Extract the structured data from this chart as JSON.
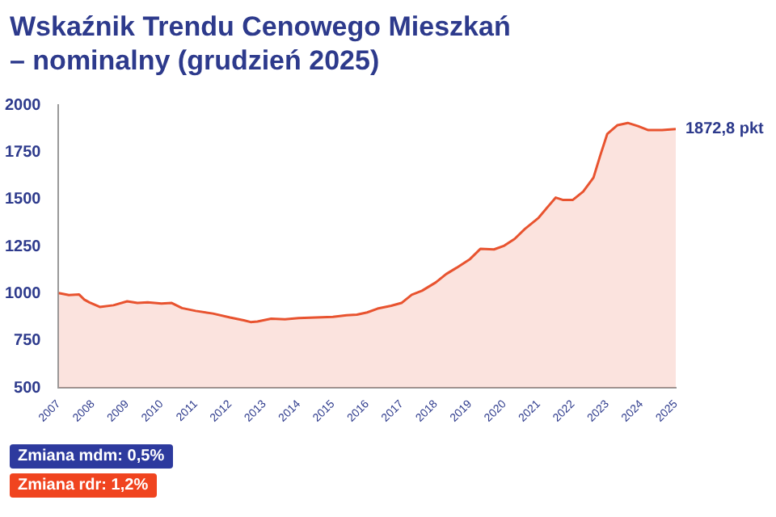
{
  "chart_data": {
    "type": "area",
    "title": "Wskaźnik Trendu Cenowego Mieszkań – nominalny (grudzień 2025)",
    "x": [
      2007.0,
      2007.3,
      2007.6,
      2007.75,
      2007.9,
      2008.2,
      2008.6,
      2009.0,
      2009.3,
      2009.6,
      2010.0,
      2010.3,
      2010.6,
      2011.0,
      2011.5,
      2012.0,
      2012.4,
      2012.6,
      2012.8,
      2013.2,
      2013.6,
      2014.0,
      2014.5,
      2015.0,
      2015.4,
      2015.7,
      2016.0,
      2016.3,
      2016.7,
      2017.0,
      2017.3,
      2017.6,
      2018.0,
      2018.3,
      2018.6,
      2019.0,
      2019.3,
      2019.7,
      2020.0,
      2020.3,
      2020.6,
      2021.0,
      2021.3,
      2021.5,
      2021.7,
      2022.0,
      2022.3,
      2022.6,
      2022.8,
      2023.0,
      2023.3,
      2023.6,
      2023.9,
      2024.2,
      2024.6,
      2025.0
    ],
    "series": [
      {
        "color": "#e8532f",
        "values": [
          1003,
          992,
          995,
          968,
          953,
          929,
          938,
          959,
          950,
          953,
          947,
          950,
          923,
          908,
          894,
          873,
          858,
          849,
          852,
          867,
          864,
          870,
          873,
          876,
          885,
          888,
          900,
          920,
          935,
          950,
          994,
          1015,
          1059,
          1103,
          1136,
          1183,
          1237,
          1234,
          1254,
          1290,
          1343,
          1402,
          1467,
          1509,
          1497,
          1497,
          1541,
          1615,
          1734,
          1846,
          1893,
          1905,
          1888,
          1867,
          1867,
          1872.8
        ]
      }
    ],
    "xlim": [
      2007,
      2025
    ],
    "xticks": [
      2007,
      2008,
      2009,
      2010,
      2011,
      2012,
      2013,
      2014,
      2015,
      2016,
      2017,
      2018,
      2019,
      2020,
      2021,
      2022,
      2023,
      2024,
      2025
    ],
    "ylim": [
      500,
      2000
    ],
    "yticks": [
      500,
      750,
      1000,
      1250,
      1500,
      1750,
      2000
    ],
    "grid": false,
    "legend": false,
    "annotations": [
      {
        "text": "1872,8 pkt",
        "x": 2025,
        "y": 1872.8
      },
      "Zmiana mdm: 0,5%",
      "Zmiana rdr: 1,2%"
    ]
  }
}
